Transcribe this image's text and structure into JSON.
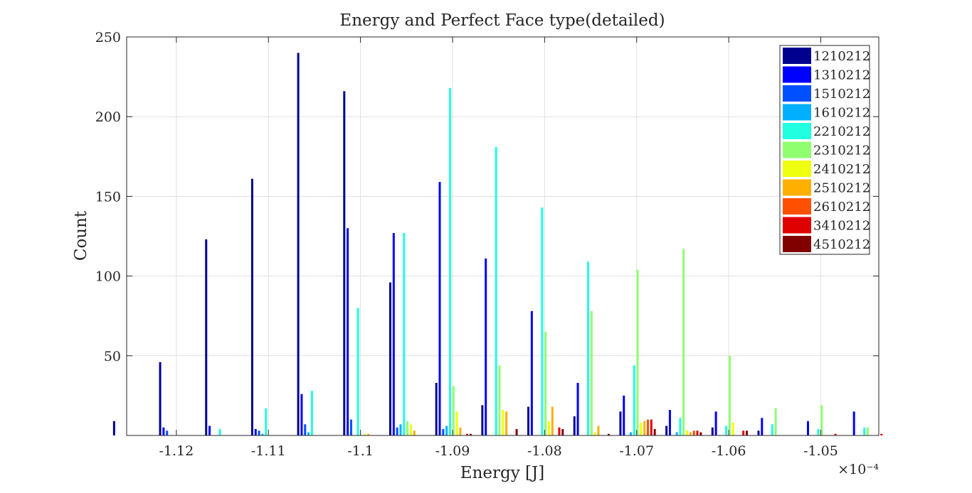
{
  "chart_data": {
    "type": "bar",
    "title": "Energy and Perfect Face type(detailed)",
    "xlabel": "Energy [J]",
    "ylabel": "Count",
    "x_exponent_label": "×10⁻⁴",
    "xlim": [
      -1.1254,
      -1.0437
    ],
    "ylim": [
      0,
      250
    ],
    "xticks": [
      -1.12,
      -1.11,
      -1.1,
      -1.09,
      -1.08,
      -1.07,
      -1.06,
      -1.05
    ],
    "xtick_labels": [
      "-1.12",
      "-1.11",
      "-1.1",
      "-1.09",
      "-1.08",
      "-1.07",
      "-1.06",
      "-1.05"
    ],
    "yticks": [
      50,
      100,
      150,
      200,
      250
    ],
    "ytick_labels": [
      "50",
      "100",
      "150",
      "200",
      "250"
    ],
    "grid": true,
    "legend_position": "top-right",
    "categories": [
      -1.1249,
      -1.1199,
      -1.1149,
      -1.1099,
      -1.1049,
      -1.0999,
      -1.0949,
      -1.0899,
      -1.0849,
      -1.0799,
      -1.0749,
      -1.0699,
      -1.0649,
      -1.0599,
      -1.0549,
      -1.0499,
      -1.0449
    ],
    "series": [
      {
        "name": "1210212",
        "color": "#00008f",
        "values": [
          9,
          46,
          123,
          161,
          240,
          216,
          96,
          33,
          19,
          18,
          12,
          15,
          6,
          5,
          3,
          0,
          0
        ]
      },
      {
        "name": "1310212",
        "color": "#0000ff",
        "values": [
          0,
          5,
          6,
          4,
          26,
          130,
          127,
          159,
          111,
          78,
          33,
          25,
          16,
          15,
          11,
          9,
          15
        ]
      },
      {
        "name": "1510212",
        "color": "#0050ff",
        "values": [
          0,
          3,
          0,
          3,
          7,
          10,
          5,
          4,
          0,
          0,
          0,
          0,
          0,
          0,
          0,
          0,
          0
        ]
      },
      {
        "name": "1610212",
        "color": "#00b0ff",
        "values": [
          0,
          0,
          0,
          1,
          2,
          0,
          7,
          6,
          0,
          0,
          0,
          2,
          2,
          0,
          0,
          0,
          0
        ]
      },
      {
        "name": "2210212",
        "color": "#20ffdf",
        "values": [
          0,
          0,
          4,
          17,
          28,
          80,
          127,
          218,
          181,
          143,
          109,
          44,
          11,
          6,
          7,
          4,
          5
        ]
      },
      {
        "name": "2310212",
        "color": "#8fff70",
        "values": [
          0,
          0,
          0,
          0,
          0,
          0,
          9,
          31,
          44,
          65,
          78,
          104,
          117,
          50,
          17,
          19,
          5
        ]
      },
      {
        "name": "2410212",
        "color": "#efff10",
        "values": [
          0,
          0,
          0,
          0,
          0,
          1,
          7,
          15,
          16,
          9,
          2,
          8,
          3,
          8,
          0,
          0,
          0
        ]
      },
      {
        "name": "2510212",
        "color": "#ffaf00",
        "values": [
          0,
          0,
          0,
          0,
          0,
          1,
          3,
          5,
          15,
          18,
          6,
          9,
          2,
          0,
          0,
          0,
          0
        ]
      },
      {
        "name": "2610212",
        "color": "#ff4f00",
        "values": [
          0,
          0,
          0,
          0,
          0,
          0,
          0,
          0,
          0,
          0,
          0,
          10,
          3,
          0,
          0,
          0,
          0
        ]
      },
      {
        "name": "3410212",
        "color": "#df0000",
        "values": [
          0,
          0,
          0,
          0,
          0,
          0,
          0,
          1,
          0,
          5,
          0,
          10,
          3,
          3,
          0,
          1,
          1
        ]
      },
      {
        "name": "4510212",
        "color": "#800000",
        "values": [
          0,
          0,
          0,
          0,
          0,
          0,
          0,
          1,
          4,
          4,
          1,
          4,
          2,
          3,
          0,
          0,
          0
        ]
      }
    ]
  }
}
